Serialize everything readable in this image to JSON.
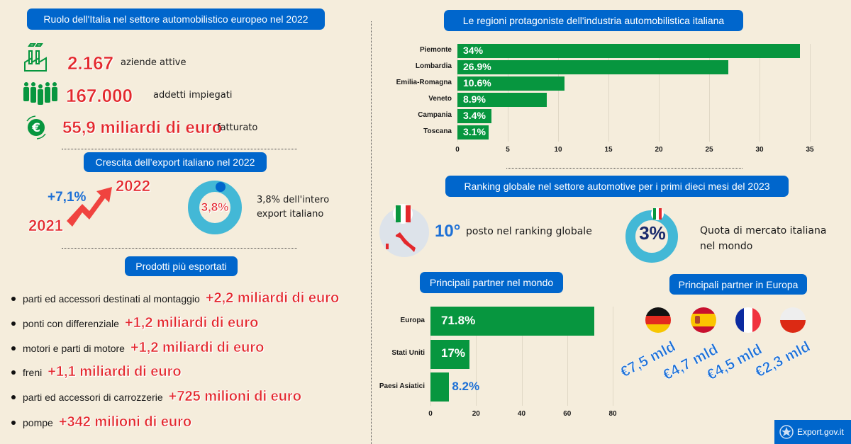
{
  "left": {
    "title": "Ruolo dell'Italia nel settore automobilistico europeo nel 2022",
    "stats": [
      {
        "value": "2.167",
        "label": "aziende attive",
        "icon": "factory-icon"
      },
      {
        "value": "167.000",
        "label": "addetti impiegati",
        "icon": "people-icon"
      },
      {
        "value": "55,9 miliardi di euro",
        "label": "fatturato",
        "icon": "euro-icon"
      }
    ],
    "export_title": "Crescita dell’export italiano nel 2022",
    "growth": "+7,1%",
    "year_from": "2021",
    "year_to": "2022",
    "share_value": "3,8%",
    "share_fraction": 0.038,
    "share_text_1": "3,8% dell'intero",
    "share_text_2": "export italiano",
    "products_title": "Prodotti più esportati",
    "products": [
      {
        "name": "parti ed accessori destinati al montaggio",
        "value": "+2,2 miliardi di euro"
      },
      {
        "name": "ponti con differenziale",
        "value": "+1,2 miliardi di euro"
      },
      {
        "name": "motori e parti di motore",
        "value": "+1,2 miliardi di euro"
      },
      {
        "name": "freni",
        "value": "+1,1 miliardi di euro"
      },
      {
        "name": "parti ed accessori di carrozzerie",
        "value": "+725 milioni di euro"
      },
      {
        "name": "pompe",
        "value": "+342 milioni di euro"
      }
    ]
  },
  "right": {
    "regions_title": "Le regioni protagoniste dell'industria automobilistica italiana",
    "ranking_title": "Ranking globale nel settore automotive per i primi dieci mesi del 2023",
    "rank_value": "10°",
    "rank_text": "posto nel ranking globale",
    "market_value": "3%",
    "market_text_1": "Quota di mercato italiana",
    "market_text_2": "nel mondo",
    "world_title": "Principali partner nel mondo",
    "europe_title": "Principali partner in Europa",
    "europe_partners": [
      {
        "flag": "germany-flag",
        "value": "€7,5 mld"
      },
      {
        "flag": "spain-flag",
        "value": "€4,7 mld"
      },
      {
        "flag": "france-flag",
        "value": "€4,5 mld"
      },
      {
        "flag": "poland-flag",
        "value": "€2,3 mld"
      }
    ],
    "logo_text": "Export.gov.it"
  },
  "colors": {
    "background": "#f5eddc",
    "header": "#0066cc",
    "bar": "#07963f",
    "accent_red": "#e3282c",
    "accent_blue": "#1d70d6",
    "donut": "#43b8d6"
  },
  "chart_data": [
    {
      "type": "bar",
      "orientation": "horizontal",
      "categories": [
        "Piemonte",
        "Lombardia",
        "Emilia-Romagna",
        "Veneto",
        "Campania",
        "Toscana"
      ],
      "values": [
        34,
        26.9,
        10.6,
        8.9,
        3.4,
        3.1
      ],
      "data_labels": [
        "34%",
        "26.9%",
        "10.6%",
        "8.9%",
        "3.4%",
        "3.1%"
      ],
      "xlim": [
        0,
        35
      ],
      "xticks": [
        "0",
        "5",
        "10",
        "15",
        "20",
        "25",
        "30",
        "35"
      ],
      "grid": true
    },
    {
      "type": "bar",
      "orientation": "horizontal",
      "categories": [
        "Europa",
        "Stati Uniti",
        "Paesi Asiatici"
      ],
      "values": [
        71.8,
        17,
        8.2
      ],
      "data_labels": [
        "71.8%",
        "17%",
        "8.2%"
      ],
      "xlim": [
        0,
        80
      ],
      "xticks": [
        "0",
        "20",
        "40",
        "60",
        "80"
      ],
      "grid": true
    }
  ]
}
